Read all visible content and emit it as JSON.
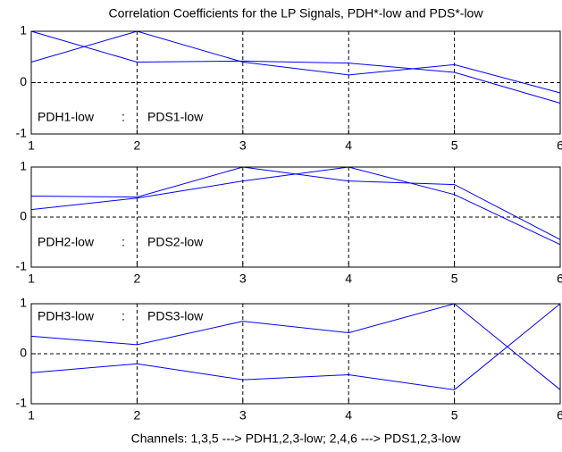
{
  "chart_data": [
    {
      "type": "line",
      "title": "Correlation Coefficients for the LP Signals, PDH*-low and PDS*-low",
      "x": [
        1,
        2,
        3,
        4,
        5,
        6
      ],
      "xlim": [
        1,
        6
      ],
      "xticks": [
        1,
        2,
        3,
        4,
        5,
        6
      ],
      "ylim": [
        -1,
        1
      ],
      "yticks": [
        -1,
        0,
        1
      ],
      "grid": true,
      "annotations": [
        "PDH1-low",
        ":",
        "PDS1-low"
      ],
      "series": [
        {
          "color": "#0000ff",
          "values": [
            1,
            0.4,
            0.42,
            0.38,
            0.2,
            -0.4
          ]
        },
        {
          "color": "#0000ff",
          "values": [
            0.4,
            1,
            0.4,
            0.15,
            0.35,
            -0.2
          ]
        }
      ]
    },
    {
      "type": "line",
      "x": [
        1,
        2,
        3,
        4,
        5,
        6
      ],
      "xlim": [
        1,
        6
      ],
      "xticks": [
        1,
        2,
        3,
        4,
        5,
        6
      ],
      "ylim": [
        -1,
        1
      ],
      "yticks": [
        -1,
        0,
        1
      ],
      "grid": true,
      "annotations": [
        "PDH2-low",
        ":",
        "PDS2-low"
      ],
      "series": [
        {
          "color": "#0000ff",
          "values": [
            0.42,
            0.4,
            1,
            0.72,
            0.65,
            -0.45
          ]
        },
        {
          "color": "#0000ff",
          "values": [
            0.15,
            0.38,
            0.72,
            1,
            0.45,
            -0.55
          ]
        }
      ]
    },
    {
      "type": "line",
      "xlabel": "Channels: 1,3,5 ---> PDH1,2,3-low; 2,4,6 ---> PDS1,2,3-low",
      "x": [
        1,
        2,
        3,
        4,
        5,
        6
      ],
      "xlim": [
        1,
        6
      ],
      "xticks": [
        1,
        2,
        3,
        4,
        5,
        6
      ],
      "ylim": [
        -1,
        1
      ],
      "yticks": [
        -1,
        0,
        1
      ],
      "grid": true,
      "annotations": [
        "PDH3-low",
        ":",
        "PDS3-low"
      ],
      "series": [
        {
          "color": "#0000ff",
          "values": [
            0.35,
            0.18,
            0.65,
            0.42,
            1,
            -0.72
          ]
        },
        {
          "color": "#0000ff",
          "values": [
            -0.38,
            -0.2,
            -0.52,
            -0.42,
            -0.72,
            1
          ]
        }
      ]
    }
  ]
}
